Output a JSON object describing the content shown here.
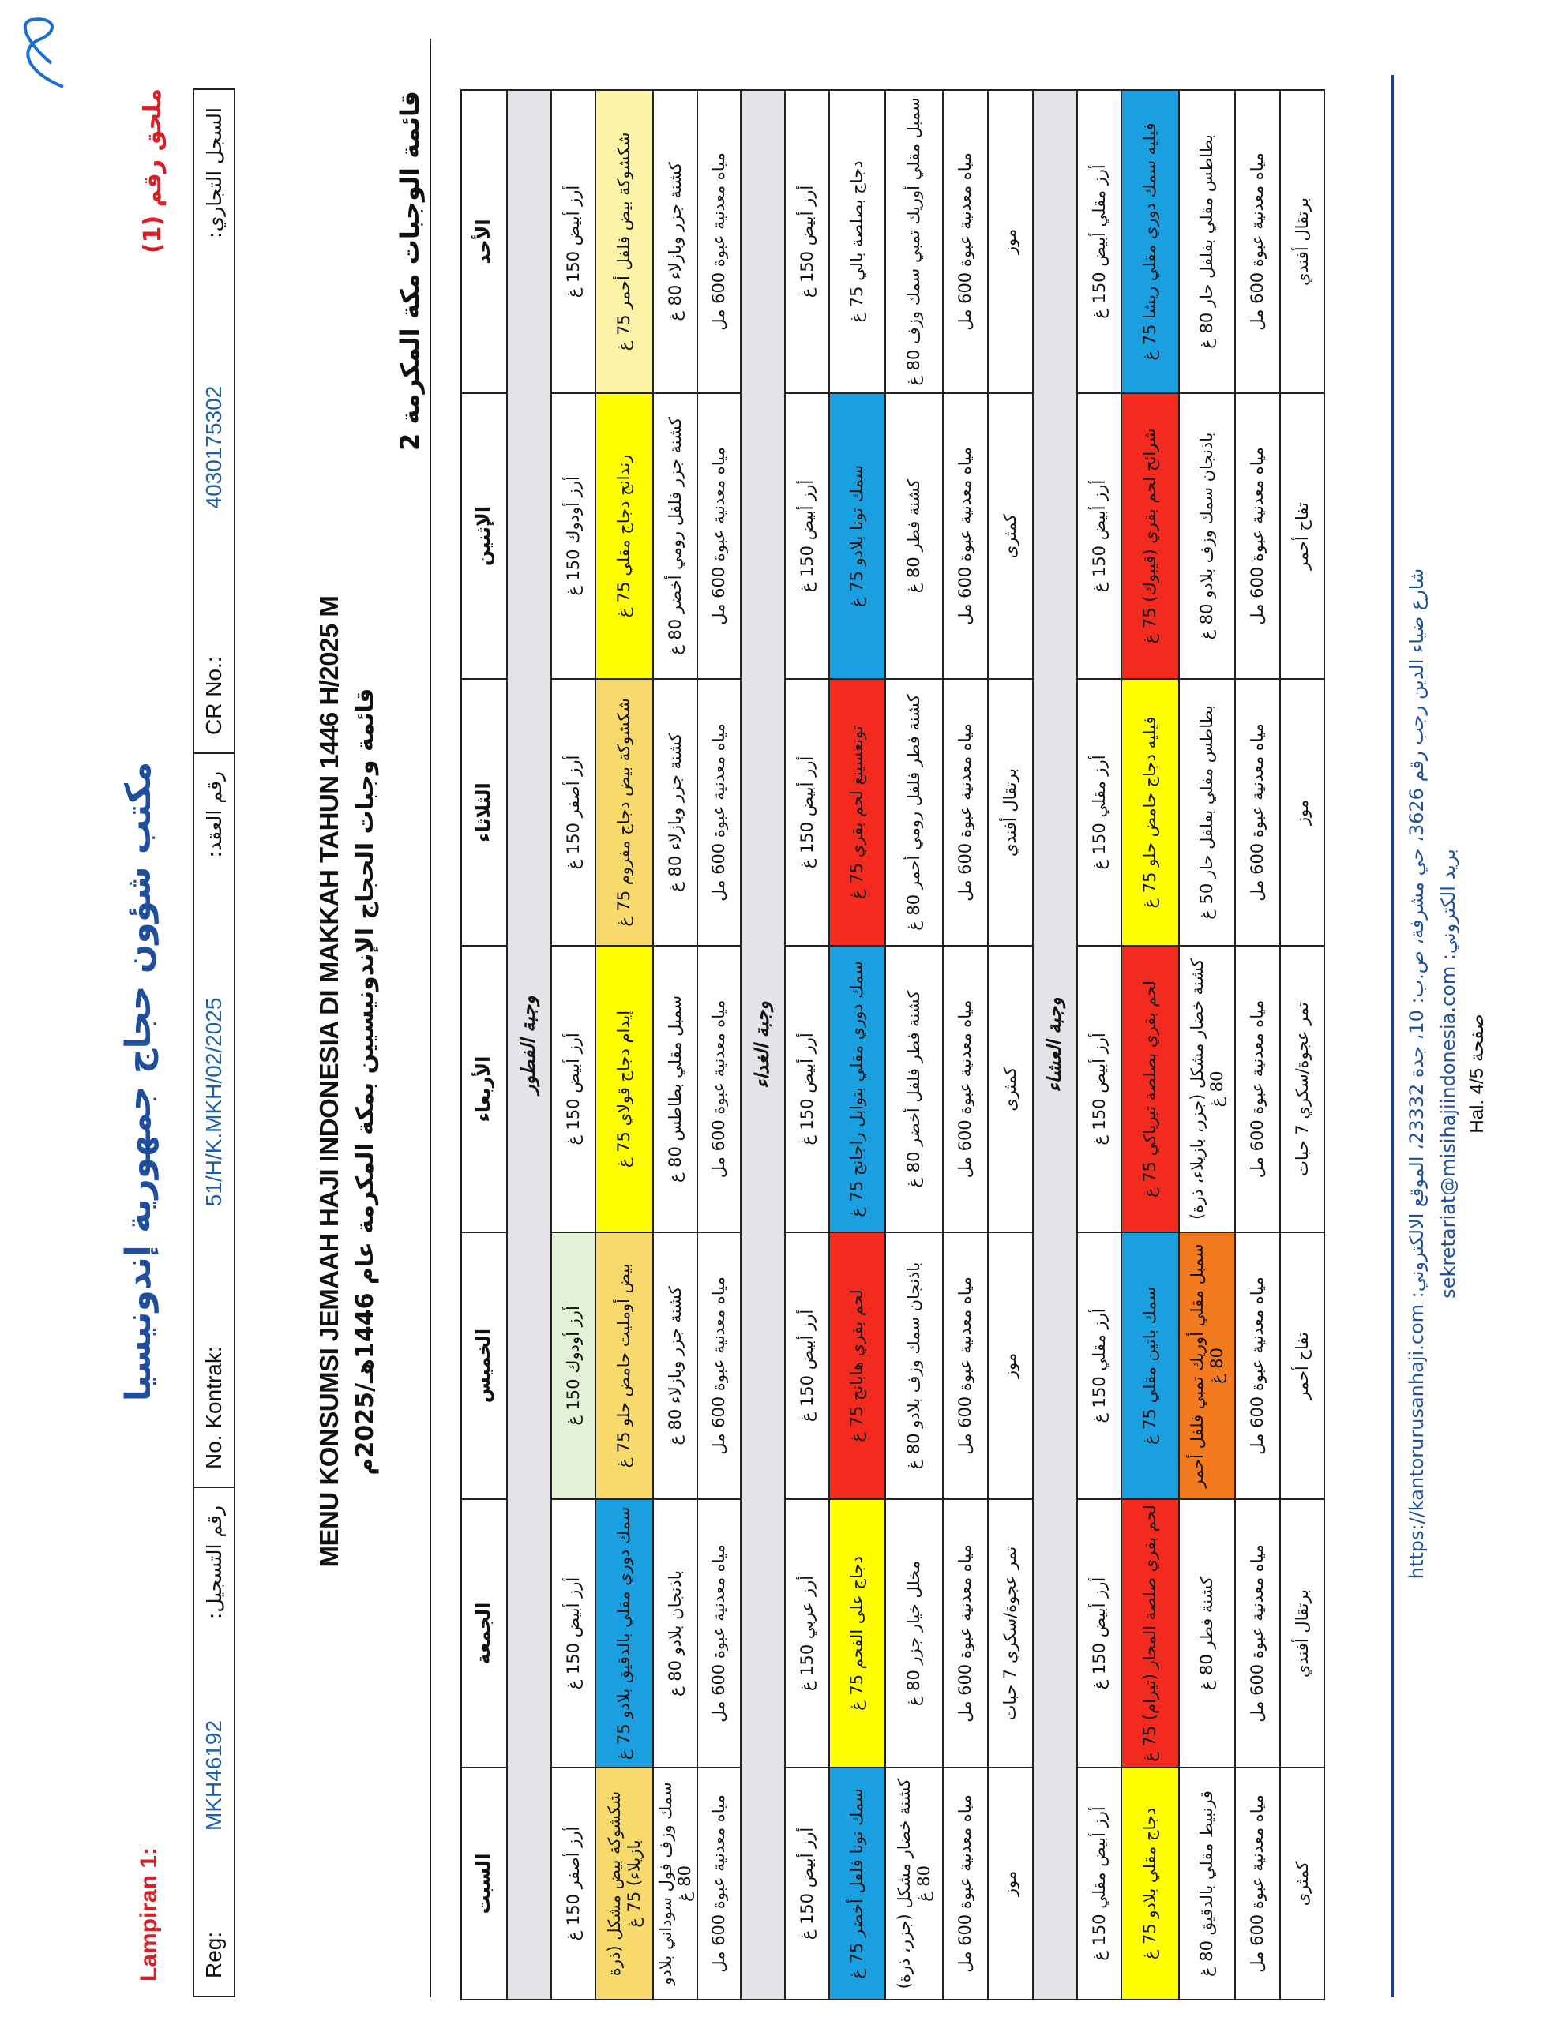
{
  "header": {
    "annex_ar": "ملحق رقم (1)",
    "annex_id": "Lampiran 1:",
    "org_title": "مكتب شؤون حجاج جمهورية إندونيسيا",
    "reg_label": "Reg:",
    "reg_value": "MKH46192",
    "reg_label_ar": "رقم التسجيل:",
    "contract_label": "No. Kontrak:",
    "contract_value": "51/H/K.MKH/02/2025",
    "contract_label_ar": "رقم العقد:",
    "cr_label": "CR No.:",
    "cr_value": "4030175302",
    "cr_label_ar": "السجل التجاري:",
    "main_title": "MENU KONSUMSI JEMAAH HAJI INDONESIA DI MAKKAH TAHUN 1446 H/2025 M",
    "sub_title": "قائمة وجبات الحجاج الإندونيسيين بمكة المكرمة عام 1446هـ/2025م",
    "list_title": "قائمة الوجبات مكة المكرمة 2"
  },
  "colors": {
    "blue": "#1a9fe0",
    "red": "#f52a1f",
    "yellow": "#ffff00",
    "gold": "#f8d96b",
    "light_yellow": "#fbf3a6",
    "light_green": "#e3f1d6",
    "orange": "#f47a20",
    "section_grey": "#e4e4e8"
  },
  "table": {
    "days": [
      "الأحد",
      "الإثنين",
      "الثلاثاء",
      "الأربعاء",
      "الخميس",
      "الجمعة",
      "السبت"
    ],
    "sections": [
      {
        "label": "وجبة الفطور",
        "rows": [
          [
            {
              "text": "أرز أبيض 150 غ"
            },
            {
              "text": "أرز أودوك 150 غ"
            },
            {
              "text": "أرز أصفر 150 غ"
            },
            {
              "text": "أرز أبيض 150 غ"
            },
            {
              "text": "أرز أودوك 150 غ",
              "color": "light_green"
            },
            {
              "text": "أرز أبيض 150 غ"
            },
            {
              "text": "أرز أصفر 150 غ"
            }
          ],
          [
            {
              "text": "شكشوكة بيض فلفل أحمر 75 غ",
              "color": "light_yellow"
            },
            {
              "text": "رندانج دجاج مقلي 75 غ",
              "color": "yellow"
            },
            {
              "text": "شكشوكة بيض دجاج مفروم 75 غ",
              "color": "gold"
            },
            {
              "text": "إيدام دجاج قولاي 75 غ",
              "color": "yellow"
            },
            {
              "text": "بيض أومليت حامض حلو 75 غ",
              "color": "gold"
            },
            {
              "text": "سمك دوري مقلي بالدقيق بلادو 75 غ",
              "color": "blue"
            },
            {
              "text": "شكشوكة بيض مشكل (ذرة بازيلاء) 75 غ",
              "color": "gold"
            }
          ],
          [
            {
              "text": "كشنة جزر وبازلاء 80 غ"
            },
            {
              "text": "كشنة جزر فلفل رومي أخضر 80 غ"
            },
            {
              "text": "كشنة جزر وبازلاء 80 غ"
            },
            {
              "text": "سمبل مقلي بطاطس 80 غ"
            },
            {
              "text": "كشنة جزر وبازلاء 80 غ"
            },
            {
              "text": "باذنجان بلادو 80 غ"
            },
            {
              "text": "سمك وزف فول سوداني بلادو 80 غ"
            }
          ],
          [
            {
              "text": "مياه معدنية عبوة 600 مل"
            },
            {
              "text": "مياه معدنية عبوة 600 مل"
            },
            {
              "text": "مياه معدنية عبوة 600 مل"
            },
            {
              "text": "مياه معدنية عبوة 600 مل"
            },
            {
              "text": "مياه معدنية عبوة 600 مل"
            },
            {
              "text": "مياه معدنية عبوة 600 مل"
            },
            {
              "text": "مياه معدنية عبوة 600 مل"
            }
          ]
        ]
      },
      {
        "label": "وجبة الغداء",
        "rows": [
          [
            {
              "text": "أرز أبيض 150 غ"
            },
            {
              "text": "أرز أبيض 150 غ"
            },
            {
              "text": "أرز أبيض 150 غ"
            },
            {
              "text": "أرز أبيض 150 غ"
            },
            {
              "text": "أرز أبيض 150 غ"
            },
            {
              "text": "أرز عربي 150 غ"
            },
            {
              "text": "أرز أبيض 150 غ"
            }
          ],
          [
            {
              "text": "دجاج بصلصة بالي 75 غ"
            },
            {
              "text": "سمك تونا بلادو 75 غ",
              "color": "blue"
            },
            {
              "text": "تونغسينغ لحم بقري 75 غ",
              "color": "red"
            },
            {
              "text": "سمك دوري مقلي بتوابل راجانج 75 غ",
              "color": "blue"
            },
            {
              "text": "لحم بقري هابانج 75 غ",
              "color": "red"
            },
            {
              "text": "دجاج على الفحم 75 غ",
              "color": "yellow"
            },
            {
              "text": "سمك تونا فلفل أخضر 75 غ",
              "color": "blue"
            }
          ],
          [
            {
              "text": "سمبل مقلي أوريك تمبي سمك وزف 80 غ"
            },
            {
              "text": "كشنة فطر 80 غ"
            },
            {
              "text": "كشنة فطر فلفل رومي أحمر 80 غ"
            },
            {
              "text": "كشنة فطر فلفل أخضر 80 غ"
            },
            {
              "text": "باذنجان سمك وزف بلادو 80 غ"
            },
            {
              "text": "مخلل خيار جزر 80 غ"
            },
            {
              "text": "كشنة خضار مشكل (جزر، ذرة) 80 غ"
            }
          ],
          [
            {
              "text": "مياه معدنية عبوة 600 مل"
            },
            {
              "text": "مياه معدنية عبوة 600 مل"
            },
            {
              "text": "مياه معدنية عبوة 600 مل"
            },
            {
              "text": "مياه معدنية عبوة 600 مل"
            },
            {
              "text": "مياه معدنية عبوة 600 مل"
            },
            {
              "text": "مياه معدنية عبوة 600 مل"
            },
            {
              "text": "مياه معدنية عبوة 600 مل"
            }
          ],
          [
            {
              "text": "موز"
            },
            {
              "text": "كمثرى"
            },
            {
              "text": "برتقال أفندي"
            },
            {
              "text": "كمثرى"
            },
            {
              "text": "موز"
            },
            {
              "text": "تمر عجوة/سكري 7 حبات"
            },
            {
              "text": "موز"
            }
          ]
        ]
      },
      {
        "label": "وجبة العشاء",
        "rows": [
          [
            {
              "text": "أرز مقلي أبيض 150 غ"
            },
            {
              "text": "أرز أبيض 150 غ"
            },
            {
              "text": "أرز مقلي 150 غ"
            },
            {
              "text": "أرز أبيض 150 غ"
            },
            {
              "text": "أرز مقلي 150 غ"
            },
            {
              "text": "أرز أبيض 150 غ"
            },
            {
              "text": "أرز أبيض مقلي 150 غ"
            }
          ],
          [
            {
              "text": "فيليه سمك دوري مقلي ريشا 75 غ",
              "color": "blue"
            },
            {
              "text": "شرائح لحم بقري (قيبوك) 75 غ",
              "color": "red"
            },
            {
              "text": "فيليه دجاج حامض حلو 75 غ",
              "color": "yellow"
            },
            {
              "text": "لحم بقري بصلصة تيرياكي 75 غ",
              "color": "red"
            },
            {
              "text": "سمك باتين مقلي 75 غ",
              "color": "blue"
            },
            {
              "text": "لحم بقري صلصة المحار (تيرام) 75 غ",
              "color": "red"
            },
            {
              "text": "دجاج مقلي بلادو 75 غ",
              "color": "yellow"
            }
          ],
          [
            {
              "text": "بطاطس مقلي بفلفل حار 80 غ"
            },
            {
              "text": "باذنجان سمك وزف بلادو 80 غ"
            },
            {
              "text": "بطاطس مقلي بفلفل حار 50 غ"
            },
            {
              "text": "كشنة خضار مشكل (جزر، بازيلاء، ذرة) 80 غ"
            },
            {
              "text": "سمبل مقلي أوريك تمبي فلفل أحمر 80 غ",
              "color": "orange"
            },
            {
              "text": "كشنة فطر 80 غ"
            },
            {
              "text": "قرنبيط مقلي بالدقيق 80 غ"
            }
          ],
          [
            {
              "text": "مياه معدنية عبوة 600 مل"
            },
            {
              "text": "مياه معدنية عبوة 600 مل"
            },
            {
              "text": "مياه معدنية عبوة 600 مل"
            },
            {
              "text": "مياه معدنية عبوة 600 مل"
            },
            {
              "text": "مياه معدنية عبوة 600 مل"
            },
            {
              "text": "مياه معدنية عبوة 600 مل"
            },
            {
              "text": "مياه معدنية عبوة 600 مل"
            }
          ],
          [
            {
              "text": "برتقال أفندي"
            },
            {
              "text": "تفاح أحمر"
            },
            {
              "text": "موز"
            },
            {
              "text": "تمر عجوة/سكري 7 حبات"
            },
            {
              "text": "تفاح أحمر"
            },
            {
              "text": "برتقال أفندي"
            },
            {
              "text": "كمثرى"
            }
          ]
        ]
      }
    ]
  },
  "footer": {
    "address": "شارع ضياء الدين رجب رقم 3626، حي مشرفة، ص.ب: 10، جدة 23332، الموقع الالكتروني: https://kantorurusanhaji.com",
    "email": "بريد الكتروني: sekretariat@misihajiindonesia.com",
    "page_ar": "صفحة",
    "page": "Hal. 4/5"
  }
}
